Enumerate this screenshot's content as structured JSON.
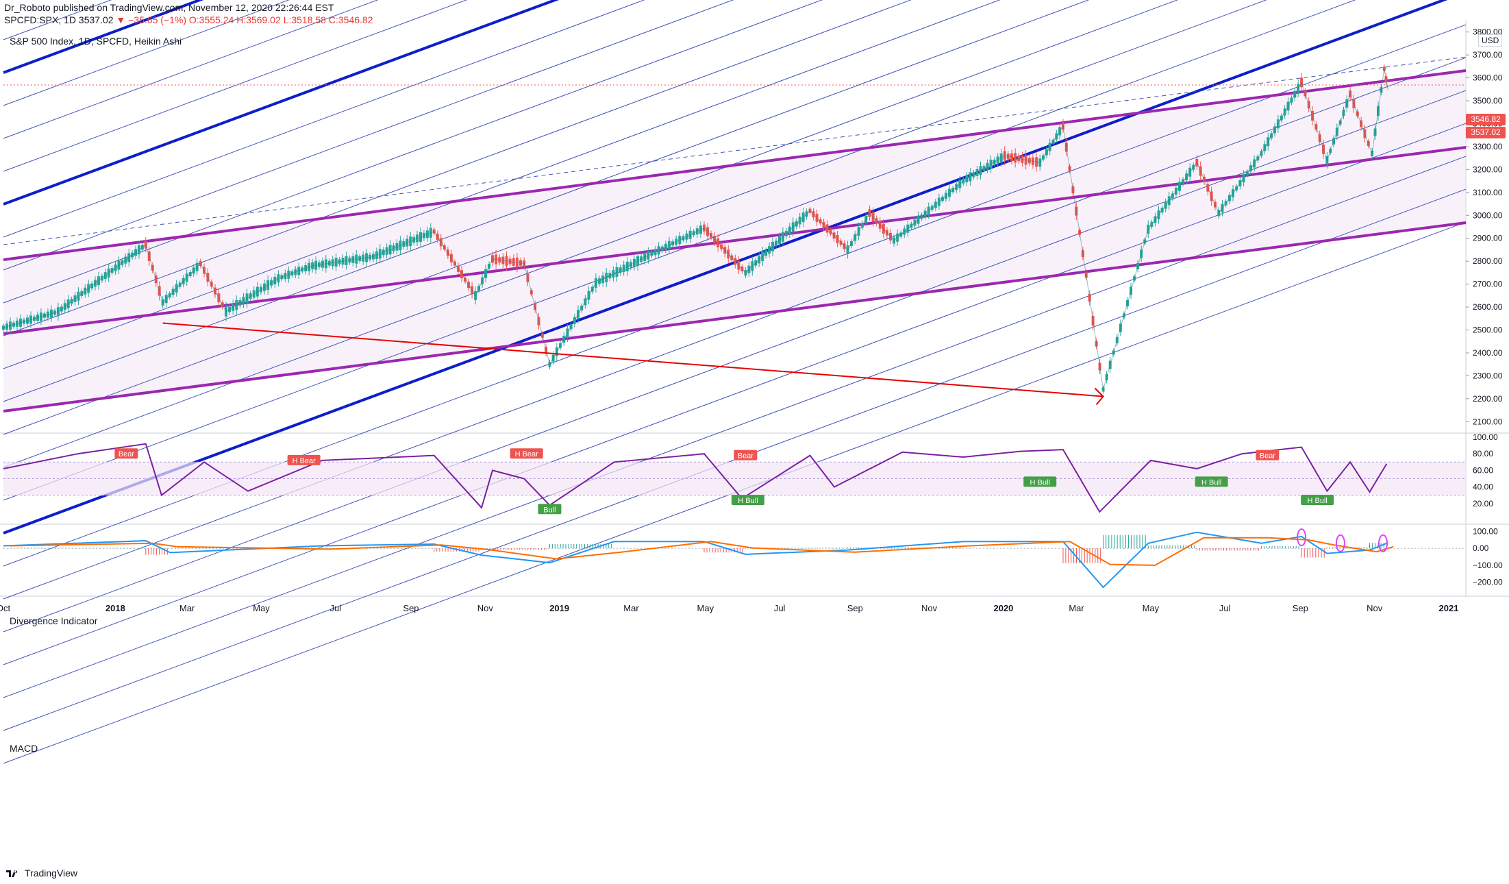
{
  "header": {
    "line1": "Dr_Roboto published on TradingView.com, November 12, 2020 22:26:44 EST",
    "symbol": "SPCFD:SPX, 1D",
    "last": "3537.02",
    "change": "▼ −35.65 (−1%)",
    "ohlc_o": "O:3555.24",
    "ohlc_h": "H:3569.02",
    "ohlc_l": "L:3518.58",
    "ohlc_c": "C:3546.82"
  },
  "chart_title": "S&P 500 Index, 1D, SPCFD, Heikin Ashi",
  "currency_button": "USD",
  "price_tags": {
    "upper": "3546.82",
    "lower": "3537.02"
  },
  "panes": {
    "divergence_title": "Divergence Indicator",
    "macd_title": "MACD"
  },
  "footer": {
    "brand": "TradingView"
  },
  "colors": {
    "up": "#26a69a",
    "down": "#ef5350",
    "channel": "#9c27b0",
    "fan_thick": "#0d1fc9",
    "fan_thin": "#3f51b5",
    "rsi": "#7b1fa2",
    "macd": "#2196f3",
    "signal": "#ff6d00",
    "arrow": "#e60000"
  },
  "chart_data": [
    {
      "type": "line",
      "name": "price",
      "x": [
        "2017-10-01",
        "2017-11-15",
        "2018-01-26",
        "2018-02-09",
        "2018-03-12",
        "2018-04-02",
        "2018-05-15",
        "2018-06-12",
        "2018-08-01",
        "2018-09-20",
        "2018-10-24",
        "2018-11-07",
        "2018-12-03",
        "2018-12-24",
        "2019-01-31",
        "2019-03-15",
        "2019-04-30",
        "2019-06-03",
        "2019-07-26",
        "2019-08-26",
        "2019-09-13",
        "2019-10-03",
        "2019-11-29",
        "2020-01-02",
        "2020-01-31",
        "2020-02-19",
        "2020-03-09",
        "2020-03-23",
        "2020-04-29",
        "2020-06-08",
        "2020-06-26",
        "2020-07-31",
        "2020-09-02",
        "2020-09-23",
        "2020-10-12",
        "2020-10-30",
        "2020-11-09",
        "2020-11-12"
      ],
      "y": [
        2510,
        2580,
        2872,
        2620,
        2790,
        2580,
        2725,
        2780,
        2820,
        2930,
        2650,
        2810,
        2790,
        2350,
        2705,
        2825,
        2945,
        2750,
        3020,
        2850,
        3010,
        2890,
        3150,
        3260,
        3230,
        3390,
        2740,
        2240,
        2940,
        3230,
        3010,
        3270,
        3580,
        3240,
        3530,
        3270,
        3640,
        3546.82
      ],
      "ylim": [
        2050,
        3850
      ]
    },
    {
      "type": "line",
      "name": "Divergence Indicator",
      "x": [
        "2017-10-01",
        "2017-12-01",
        "2018-01-26",
        "2018-02-08",
        "2018-03-15",
        "2018-04-20",
        "2018-06-20",
        "2018-09-20",
        "2018-10-29",
        "2018-11-07",
        "2018-12-03",
        "2018-12-24",
        "2019-02-15",
        "2019-04-30",
        "2019-05-31",
        "2019-07-26",
        "2019-08-15",
        "2019-10-10",
        "2019-11-29",
        "2020-01-15",
        "2020-02-19",
        "2020-03-20",
        "2020-05-01",
        "2020-06-08",
        "2020-07-15",
        "2020-09-02",
        "2020-09-23",
        "2020-10-12",
        "2020-10-28",
        "2020-11-11"
      ],
      "y": [
        62,
        80,
        92,
        30,
        70,
        35,
        72,
        78,
        15,
        60,
        50,
        18,
        70,
        80,
        26,
        78,
        40,
        82,
        76,
        83,
        85,
        10,
        72,
        62,
        80,
        88,
        35,
        70,
        34,
        68
      ],
      "ylim": [
        0,
        100
      ],
      "ticks": [
        "100.00",
        "80.00",
        "60.00",
        "40.00",
        "20.00"
      ],
      "labels": [
        "Bear",
        "H Bear",
        "H Bear",
        "Bull",
        "Bear",
        "H Bull",
        "H Bull",
        "H Bull",
        "Bear",
        "H Bull"
      ]
    },
    {
      "type": "line",
      "name": "MACD",
      "x": [
        "2017-10-01",
        "2018-01-26",
        "2018-02-15",
        "2018-06-20",
        "2018-09-20",
        "2018-10-29",
        "2018-12-24",
        "2019-02-15",
        "2019-04-30",
        "2019-06-03",
        "2019-08-26",
        "2019-11-29",
        "2020-02-19",
        "2020-03-23",
        "2020-04-29",
        "2020-06-08",
        "2020-07-31",
        "2020-09-02",
        "2020-09-23",
        "2020-10-28",
        "2020-11-11"
      ],
      "y": [
        15,
        45,
        -25,
        15,
        25,
        -40,
        -85,
        40,
        40,
        -35,
        -10,
        40,
        40,
        -230,
        30,
        95,
        30,
        70,
        -30,
        -10,
        30
      ],
      "ylim": [
        -250,
        110
      ],
      "ticks": [
        "100.00",
        "0.00",
        "−100.00",
        "−200.00"
      ]
    }
  ],
  "price_axis": [
    "3800.00",
    "3700.00",
    "3600.00",
    "3500.00",
    "3400.00",
    "3300.00",
    "3200.00",
    "3100.00",
    "3000.00",
    "2900.00",
    "2800.00",
    "2700.00",
    "2600.00",
    "2500.00",
    "2400.00",
    "2300.00",
    "2200.00",
    "2100.00"
  ],
  "time_axis": [
    "Oct",
    "2018",
    "Mar",
    "May",
    "Jul",
    "Sep",
    "Nov",
    "2019",
    "Mar",
    "May",
    "Jul",
    "Sep",
    "Nov",
    "2020",
    "Mar",
    "May",
    "Jul",
    "Sep",
    "Nov",
    "2021"
  ]
}
